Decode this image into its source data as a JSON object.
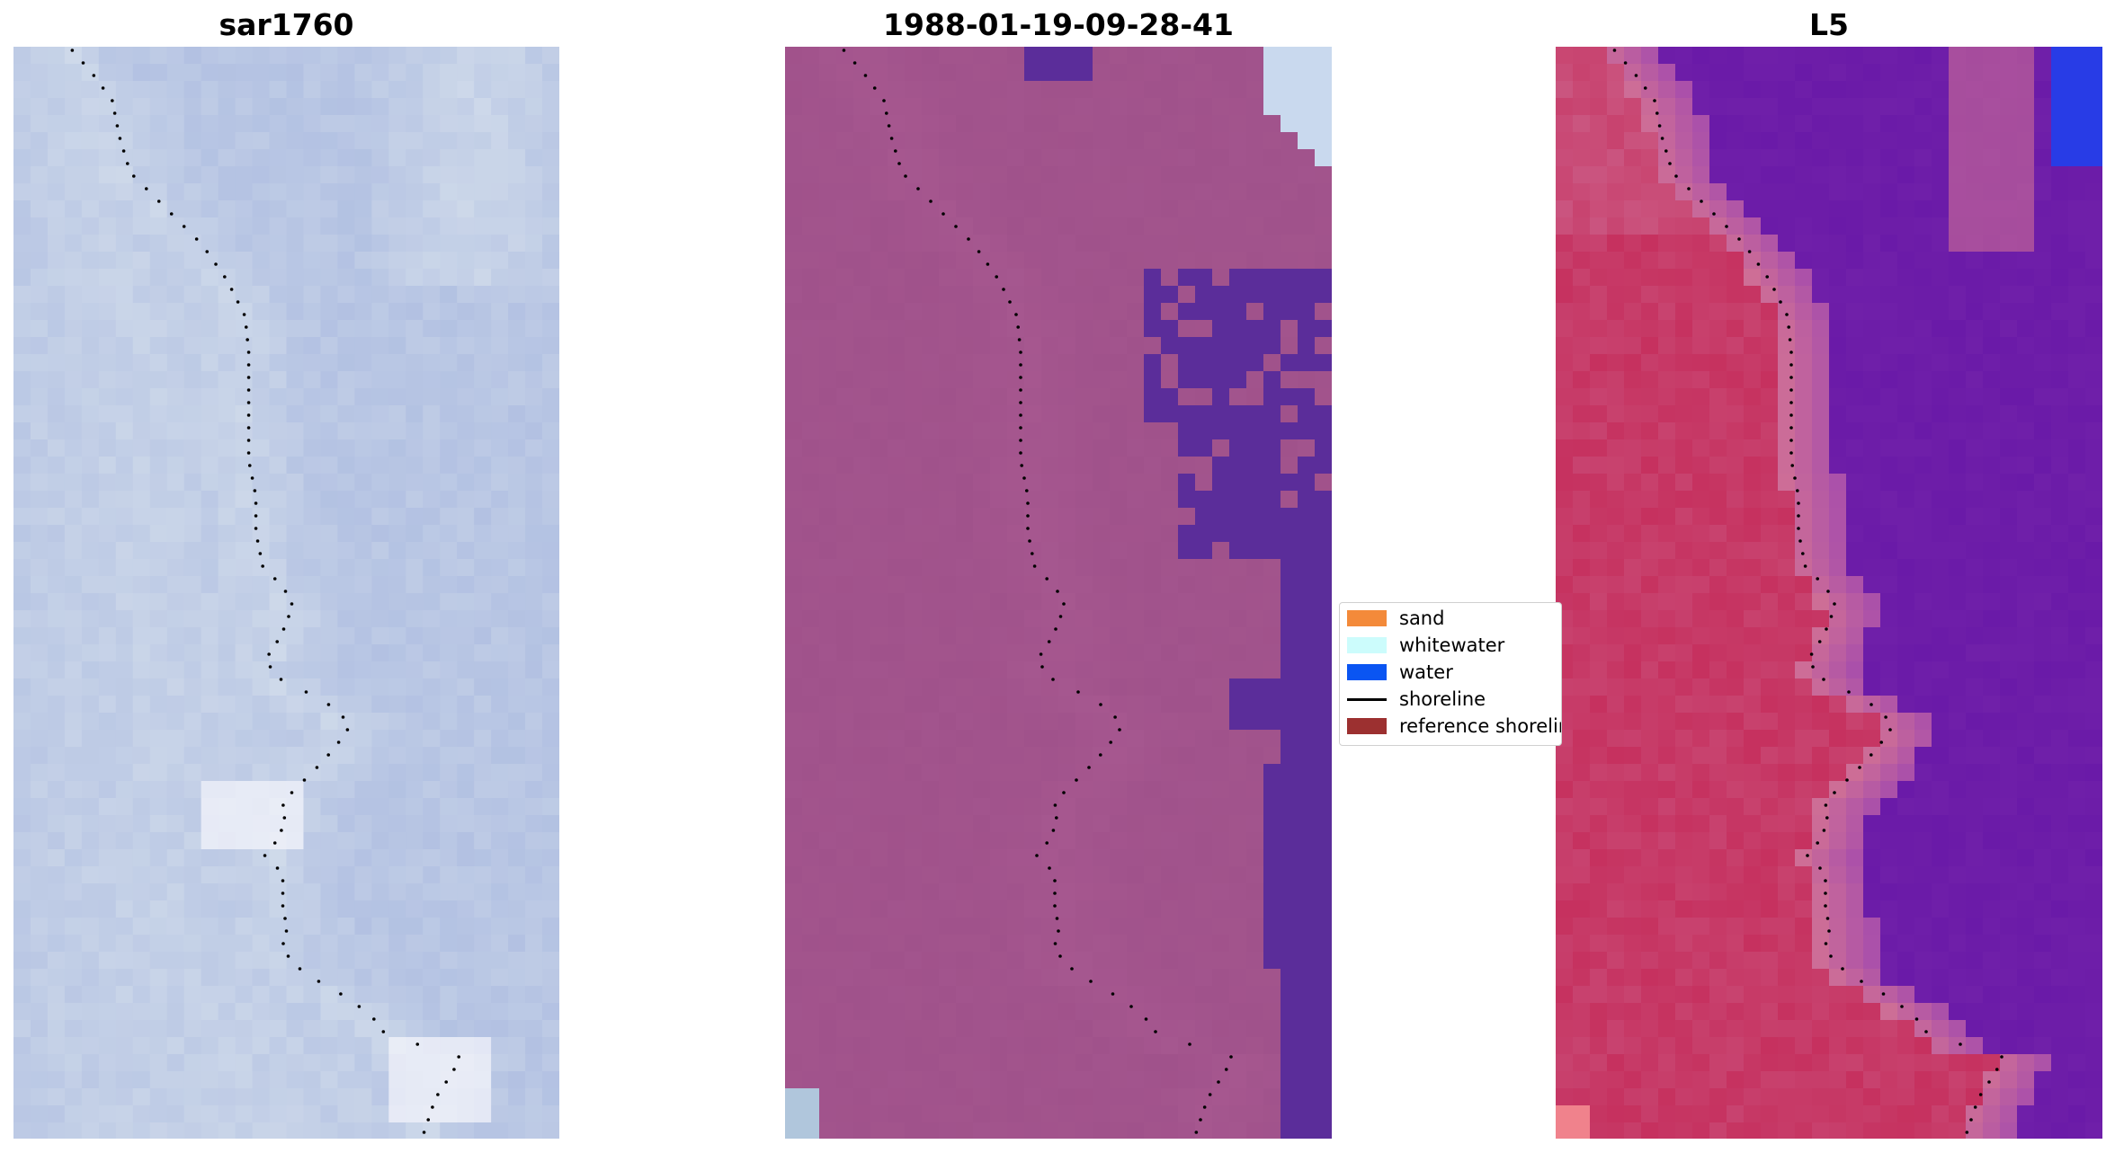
{
  "panels": [
    {
      "title": "sar1760",
      "style": "sar"
    },
    {
      "title": "1988-01-19-09-28-41",
      "style": "class"
    },
    {
      "title": "L5",
      "style": "l5"
    }
  ],
  "legend": {
    "items": [
      {
        "label": "sand",
        "color": "#f38a3a",
        "kind": "patch"
      },
      {
        "label": "whitewater",
        "color": "#ccfcfc",
        "kind": "patch"
      },
      {
        "label": "water",
        "color": "#0a55f2",
        "kind": "patch"
      },
      {
        "label": "shoreline",
        "color": "#000000",
        "kind": "line"
      },
      {
        "label": "reference shoreline",
        "color": "#9c3030",
        "kind": "patch"
      }
    ]
  },
  "colors": {
    "sar_base": "#a7b7df",
    "class_base": "#a0528b",
    "class_water": "#5b2d9a",
    "l5_sea": "#6a1aa8",
    "l5_land": "#c42655",
    "shoreline": "#000000"
  }
}
